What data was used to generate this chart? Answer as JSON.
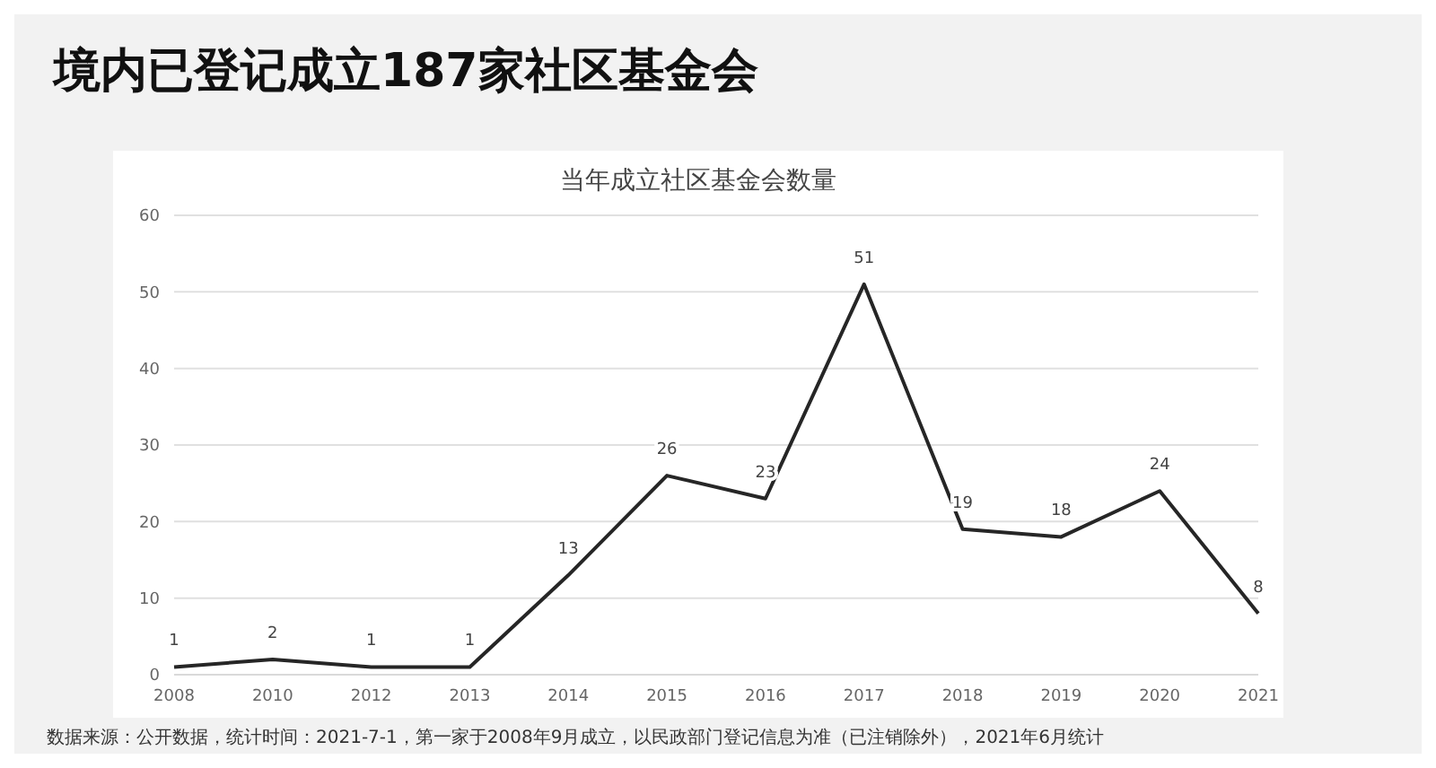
{
  "chart_data": {
    "type": "line",
    "title": "境内已登记成立187家社区基金会",
    "subtitle": "当年成立社区基金会数量",
    "categories": [
      "2008",
      "2010",
      "2012",
      "2013",
      "2014",
      "2015",
      "2016",
      "2017",
      "2018",
      "2019",
      "2020",
      "2021"
    ],
    "series": [
      {
        "color": "#262626",
        "values": [
          1,
          2,
          1,
          1,
          13,
          26,
          23,
          51,
          19,
          18,
          24,
          8
        ]
      }
    ],
    "ylim": [
      0,
      60
    ],
    "yticks": [
      0,
      10,
      20,
      30,
      40,
      50,
      60
    ],
    "grid": "y",
    "data_labels": true,
    "marker": "none",
    "line_style": "solid",
    "annotations": [
      "数据来源：公开数据，统计时间：2021-7-1，第一家于2008年9月成立，以民政部门登记信息为准（已注销除外），2021年6月统计"
    ]
  }
}
